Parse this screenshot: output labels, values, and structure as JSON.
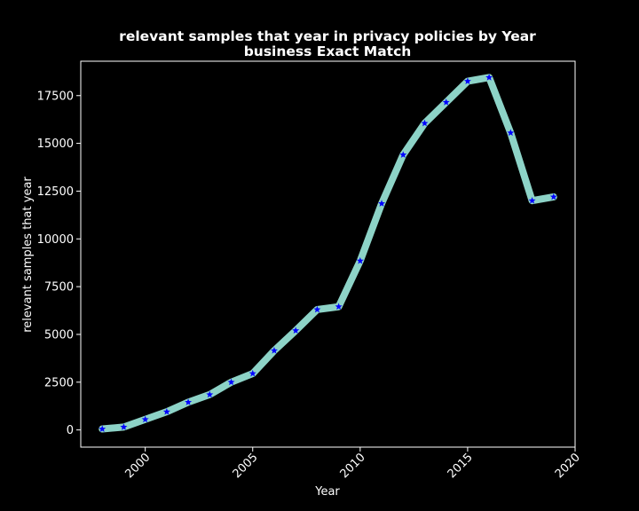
{
  "chart_data": {
    "type": "line",
    "title_line1": "relevant samples that year in privacy policies by Year",
    "title_line2": "business Exact Match",
    "xlabel": "Year",
    "ylabel": "relevant samples that year",
    "xlim": [
      1997,
      2020
    ],
    "ylim": [
      -900,
      19300
    ],
    "xticks": [
      2000,
      2005,
      2010,
      2015,
      2020
    ],
    "yticks": [
      0,
      2500,
      5000,
      7500,
      10000,
      12500,
      15000,
      17500
    ],
    "line_color": "#8dd3c7",
    "marker_color": "#0000ff",
    "marker": "star",
    "grid": false,
    "legend": "none",
    "x": [
      1998,
      1999,
      2000,
      2001,
      2002,
      2003,
      2004,
      2005,
      2006,
      2007,
      2008,
      2009,
      2010,
      2011,
      2012,
      2013,
      2014,
      2015,
      2016,
      2017,
      2018,
      2019
    ],
    "y": [
      50,
      150,
      550,
      950,
      1450,
      1850,
      2500,
      2950,
      4150,
      5200,
      6300,
      6450,
      8850,
      11850,
      14400,
      16050,
      17150,
      18250,
      18450,
      15550,
      12000,
      12200
    ]
  }
}
